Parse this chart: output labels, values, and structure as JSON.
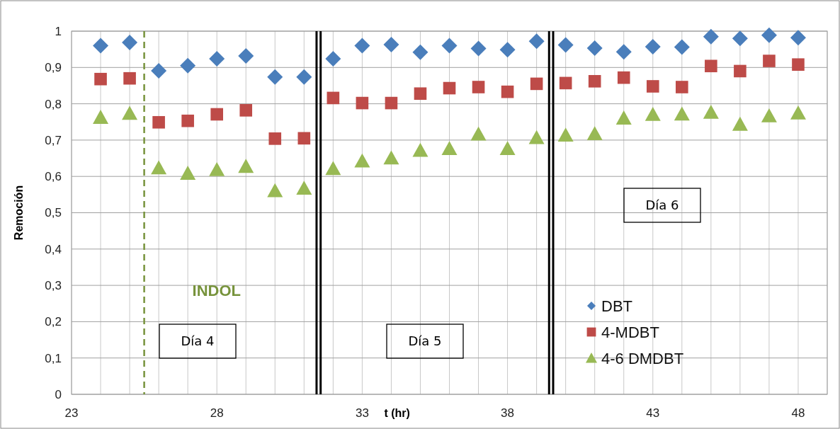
{
  "chart_data": {
    "type": "scatter",
    "xlabel": "t (hr)",
    "ylabel": "Remoción",
    "x": [
      24,
      25,
      26,
      27,
      28,
      29,
      30,
      31,
      32,
      33,
      34,
      35,
      36,
      37,
      38,
      39,
      40,
      41,
      42,
      43,
      44,
      45,
      46,
      47,
      48
    ],
    "series": [
      {
        "name": "DBT",
        "color": "#4a7ebb",
        "marker": "diamond",
        "values": [
          0.96,
          0.969,
          0.891,
          0.905,
          0.924,
          0.932,
          0.874,
          0.874,
          0.924,
          0.96,
          0.963,
          0.942,
          0.96,
          0.952,
          0.949,
          0.972,
          0.962,
          0.953,
          0.943,
          0.957,
          0.956,
          0.985,
          0.98,
          0.989,
          0.982
        ]
      },
      {
        "name": "4-MDBT",
        "color": "#be4b48",
        "marker": "square",
        "values": [
          0.868,
          0.87,
          0.749,
          0.753,
          0.771,
          0.782,
          0.704,
          0.705,
          0.816,
          0.802,
          0.802,
          0.828,
          0.843,
          0.846,
          0.833,
          0.855,
          0.857,
          0.862,
          0.872,
          0.848,
          0.846,
          0.904,
          0.89,
          0.918,
          0.908
        ]
      },
      {
        "name": "4-6 DMDBT",
        "color": "#98b954",
        "marker": "triangle",
        "values": [
          0.762,
          0.773,
          0.623,
          0.608,
          0.618,
          0.627,
          0.56,
          0.567,
          0.621,
          0.642,
          0.65,
          0.671,
          0.676,
          0.716,
          0.676,
          0.706,
          0.713,
          0.717,
          0.76,
          0.77,
          0.771,
          0.776,
          0.743,
          0.766,
          0.774
        ]
      }
    ],
    "xlim": [
      23,
      49
    ],
    "xticks": [
      23,
      28,
      33,
      38,
      43,
      48
    ],
    "ylim": [
      0,
      1
    ],
    "yticks": [
      0,
      {
        "value": 0.1,
        "label": "0,1"
      },
      {
        "value": 0.2,
        "label": "0,2"
      },
      {
        "value": 0.3,
        "label": "0,3"
      },
      {
        "value": 0.4,
        "label": "0,4"
      },
      {
        "value": 0.5,
        "label": "0,5"
      },
      {
        "value": 0.6,
        "label": "0,6"
      },
      {
        "value": 0.7,
        "label": "0,7"
      },
      {
        "value": 0.8,
        "label": "0,8"
      },
      {
        "value": 0.9,
        "label": "0,9"
      },
      1
    ],
    "grid": true,
    "legend": "bottom right",
    "ref_lines": [
      {
        "axis": "x",
        "value": 25.5,
        "label": "INDOL",
        "color": "#77933c",
        "line_style": "dashed"
      },
      {
        "axis": "x",
        "value": 31.43,
        "color": "#000000",
        "line_style": "solid"
      },
      {
        "axis": "x",
        "value": 31.57,
        "color": "#000000",
        "line_style": "solid"
      },
      {
        "axis": "x",
        "value": 39.43,
        "color": "#000000",
        "line_style": "solid"
      },
      {
        "axis": "x",
        "value": 39.57,
        "color": "#000000",
        "line_style": "solid"
      }
    ],
    "annotations": [
      "Día 4",
      "Día 5",
      "Día 6"
    ]
  }
}
